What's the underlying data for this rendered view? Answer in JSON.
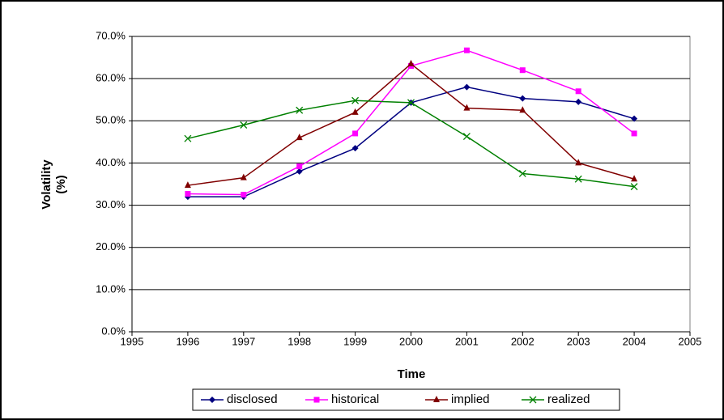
{
  "chart_data": {
    "type": "line",
    "x_label": "Time",
    "y_label": [
      "Volatility",
      "(%)"
    ],
    "x": [
      1996,
      1997,
      1998,
      1999,
      2000,
      2001,
      2002,
      2003,
      2004
    ],
    "xlim": [
      1995,
      2005
    ],
    "xticks": [
      1995,
      1996,
      1997,
      1998,
      1999,
      2000,
      2001,
      2002,
      2003,
      2004,
      2005
    ],
    "ylim": [
      0,
      70
    ],
    "yticks": [
      {
        "value": 0,
        "label": "0.0%"
      },
      {
        "value": 10,
        "label": "10.0%"
      },
      {
        "value": 20,
        "label": "20.0%"
      },
      {
        "value": 30,
        "label": "30.0%"
      },
      {
        "value": 40,
        "label": "40.0%"
      },
      {
        "value": 50,
        "label": "50.0%"
      },
      {
        "value": 60,
        "label": "60.0%"
      },
      {
        "value": 70,
        "label": "70.0%"
      }
    ],
    "grid": true,
    "legend": "bottom",
    "series": [
      {
        "name": "disclosed",
        "color": "#000080",
        "marker": "diamond",
        "values": [
          32,
          32,
          38,
          43.5,
          54.3,
          58,
          55.3,
          54.5,
          50.5
        ]
      },
      {
        "name": "historical",
        "color": "#ff00ff",
        "marker": "square",
        "values": [
          32.7,
          32.5,
          39.2,
          47,
          63,
          66.7,
          62,
          57,
          47
        ]
      },
      {
        "name": "implied",
        "color": "#800000",
        "marker": "triangle",
        "values": [
          34.7,
          36.5,
          46,
          52,
          63.5,
          53,
          52.5,
          40,
          36.2
        ]
      },
      {
        "name": "realized",
        "color": "#008000",
        "marker": "x",
        "values": [
          45.8,
          49,
          52.5,
          54.8,
          54.3,
          46.3,
          37.5,
          36.2,
          34.4
        ]
      }
    ]
  }
}
